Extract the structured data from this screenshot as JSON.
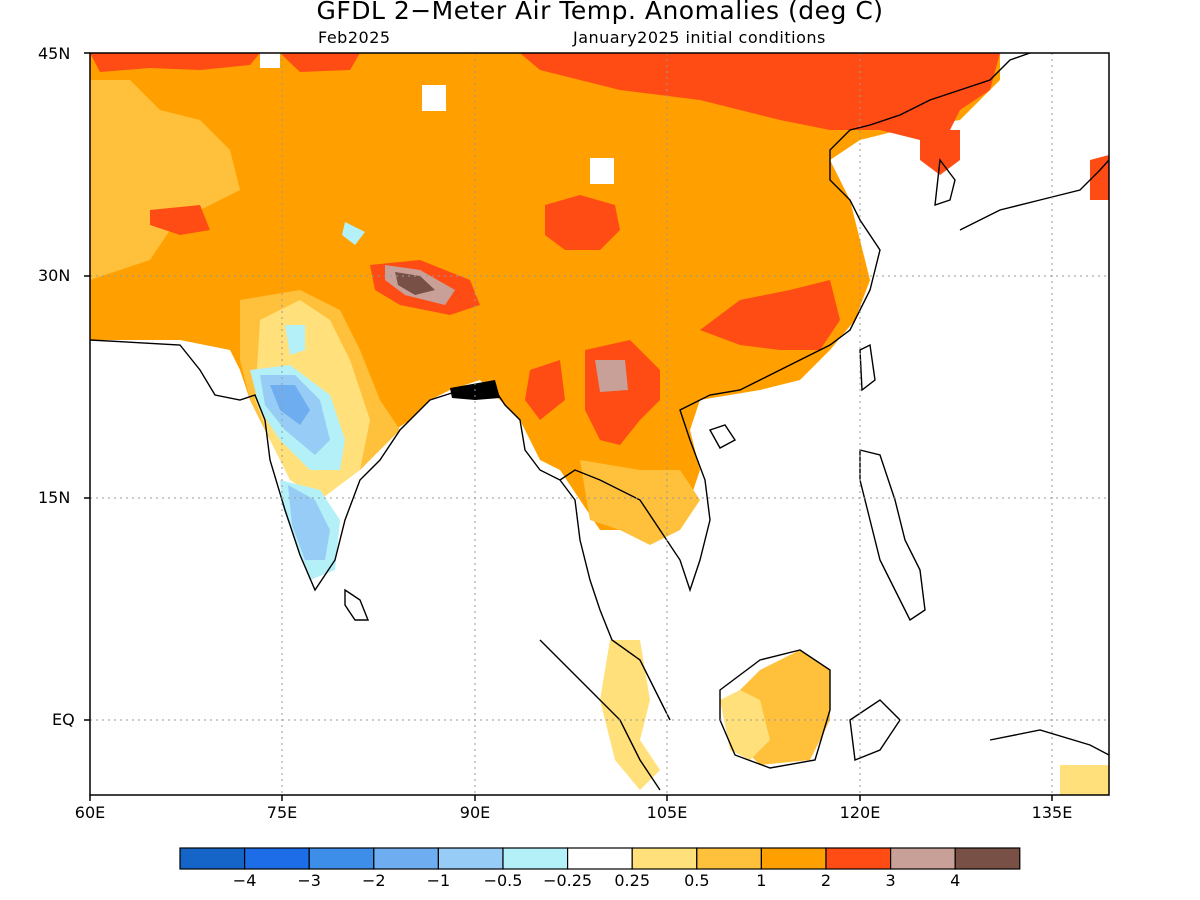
{
  "title": "GFDL 2−Meter Air Temp. Anomalies (deg C)",
  "subtitle_left": "Feb2025",
  "subtitle_right": "January2025 initial conditions",
  "lat_labels": [
    "45N",
    "30N",
    "15N",
    "EQ"
  ],
  "lon_labels": [
    "60E",
    "75E",
    "90E",
    "105E",
    "120E",
    "135E"
  ],
  "colorbar": {
    "labels": [
      "−4",
      "−3",
      "−2",
      "−1",
      "−0.5",
      "−0.25",
      "0.25",
      "0.5",
      "1",
      "2",
      "3",
      "4"
    ],
    "colors": [
      "#1565c8",
      "#1e6de8",
      "#3c8ee8",
      "#6eaef0",
      "#96ccf5",
      "#b4f0f8",
      "#ffffff",
      "#ffe07a",
      "#ffc03c",
      "#ffa000",
      "#ff4b14",
      "#c8a098",
      "#785046"
    ]
  }
}
